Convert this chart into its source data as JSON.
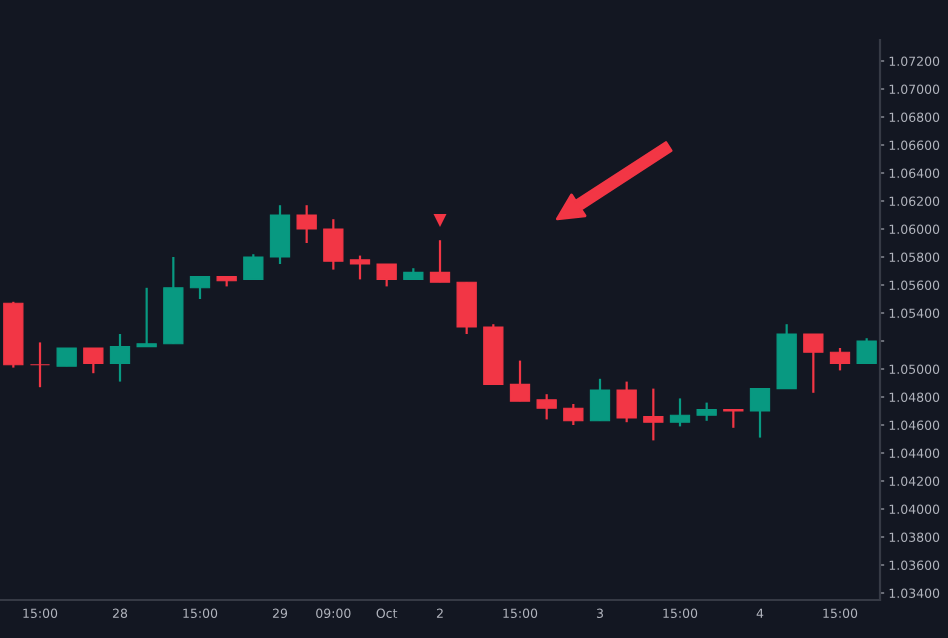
{
  "chart_data": {
    "type": "candlestick",
    "categories": [
      null,
      "15:00",
      null,
      null,
      "28",
      null,
      null,
      "15:00",
      null,
      null,
      "29",
      null,
      "09:00",
      null,
      "Oct",
      null,
      "2",
      null,
      null,
      "15:00",
      null,
      null,
      "3",
      null,
      null,
      "15:00",
      null,
      null,
      "4",
      null,
      null,
      "15:00",
      null
    ],
    "ohlc": [
      [
        1.0547,
        1.0548,
        1.0501,
        1.0503
      ],
      [
        1.0503,
        1.0519,
        1.0487,
        1.0503
      ],
      [
        1.0502,
        1.0515,
        1.0502,
        1.0515
      ],
      [
        1.0515,
        1.0515,
        1.0497,
        1.0504
      ],
      [
        1.0504,
        1.0525,
        1.0491,
        1.0516
      ],
      [
        1.0516,
        1.0558,
        1.0516,
        1.0518
      ],
      [
        1.0518,
        1.058,
        1.0518,
        1.0558
      ],
      [
        1.0558,
        1.0566,
        1.055,
        1.0566
      ],
      [
        1.0566,
        1.0566,
        1.0559,
        1.0563
      ],
      [
        1.0564,
        1.0582,
        1.0564,
        1.058
      ],
      [
        1.058,
        1.0617,
        1.0575,
        1.061
      ],
      [
        1.061,
        1.0617,
        1.059,
        1.06
      ],
      [
        1.06,
        1.0607,
        1.0571,
        1.0577
      ],
      [
        1.0578,
        1.0581,
        1.0564,
        1.0575
      ],
      [
        1.0575,
        1.0575,
        1.0559,
        1.0564
      ],
      [
        1.0564,
        1.0572,
        1.0564,
        1.0569
      ],
      [
        1.0569,
        1.0592,
        1.0562,
        1.0562
      ],
      [
        1.0562,
        1.0562,
        1.0525,
        1.053
      ],
      [
        1.053,
        1.0532,
        1.0489,
        1.0489
      ],
      [
        1.0489,
        1.0506,
        1.0477,
        1.0477
      ],
      [
        1.0478,
        1.0482,
        1.0464,
        1.0472
      ],
      [
        1.0472,
        1.0475,
        1.046,
        1.0463
      ],
      [
        1.0463,
        1.0493,
        1.0463,
        1.0485
      ],
      [
        1.0485,
        1.0491,
        1.0462,
        1.0465
      ],
      [
        1.0466,
        1.0486,
        1.0449,
        1.0462
      ],
      [
        1.0462,
        1.0479,
        1.0459,
        1.0467
      ],
      [
        1.0467,
        1.0476,
        1.0463,
        1.0471
      ],
      [
        1.0471,
        1.0471,
        1.0458,
        1.047
      ],
      [
        1.047,
        1.0486,
        1.0451,
        1.0486
      ],
      [
        1.0486,
        1.0532,
        1.0486,
        1.0525
      ],
      [
        1.0525,
        1.0525,
        1.0483,
        1.0512
      ],
      [
        1.0512,
        1.0515,
        1.0499,
        1.0504
      ],
      [
        1.0504,
        1.0522,
        1.0504,
        1.052
      ]
    ],
    "colors": [
      "#f23645",
      "#f23645",
      "#089981",
      "#f23645",
      "#089981",
      "#089981",
      "#089981",
      "#089981",
      "#f23645",
      "#089981",
      "#089981",
      "#f23645",
      "#f23645",
      "#f23645",
      "#f23645",
      "#089981",
      "#f23645",
      "#f23645",
      "#f23645",
      "#f23645",
      "#f23645",
      "#f23645",
      "#089981",
      "#f23645",
      "#f23645",
      "#089981",
      "#089981",
      "#f23645",
      "#089981",
      "#089981",
      "#f23645",
      "#f23645",
      "#089981"
    ],
    "series": [
      {
        "type": "scatter",
        "color": "#f23645",
        "marker": "triangle",
        "values": [
          null,
          null,
          null,
          null,
          null,
          null,
          null,
          null,
          null,
          null,
          null,
          null,
          null,
          null,
          null,
          null,
          1.0606,
          null,
          null,
          null,
          null,
          null,
          null,
          null,
          null,
          null,
          null,
          null,
          null,
          null,
          null,
          null,
          null
        ]
      }
    ],
    "ylim": [
      1.0335,
      1.0735
    ],
    "yticks": [
      {
        "value": 1.072,
        "label": "1.07200"
      },
      {
        "value": 1.07,
        "label": "1.07000"
      },
      {
        "value": 1.068,
        "label": "1.06800"
      },
      {
        "value": 1.066,
        "label": "1.06600"
      },
      {
        "value": 1.064,
        "label": "1.06400"
      },
      {
        "value": 1.062,
        "label": "1.06200"
      },
      {
        "value": 1.06,
        "label": "1.06000"
      },
      {
        "value": 1.058,
        "label": "1.05800"
      },
      {
        "value": 1.056,
        "label": "1.05600"
      },
      {
        "value": 1.054,
        "label": "1.05400"
      },
      {
        "value": 1.052,
        "label": null
      },
      {
        "value": 1.05,
        "label": "1.05000"
      },
      {
        "value": 1.048,
        "label": "1.04800"
      },
      {
        "value": 1.046,
        "label": "1.04600"
      },
      {
        "value": 1.044,
        "label": "1.04400"
      },
      {
        "value": 1.042,
        "label": "1.04200"
      },
      {
        "value": 1.04,
        "label": "1.04000"
      },
      {
        "value": 1.038,
        "label": "1.03800"
      },
      {
        "value": 1.036,
        "label": "1.03600"
      },
      {
        "value": 1.034,
        "label": "1.03400"
      }
    ],
    "grid": false
  }
}
